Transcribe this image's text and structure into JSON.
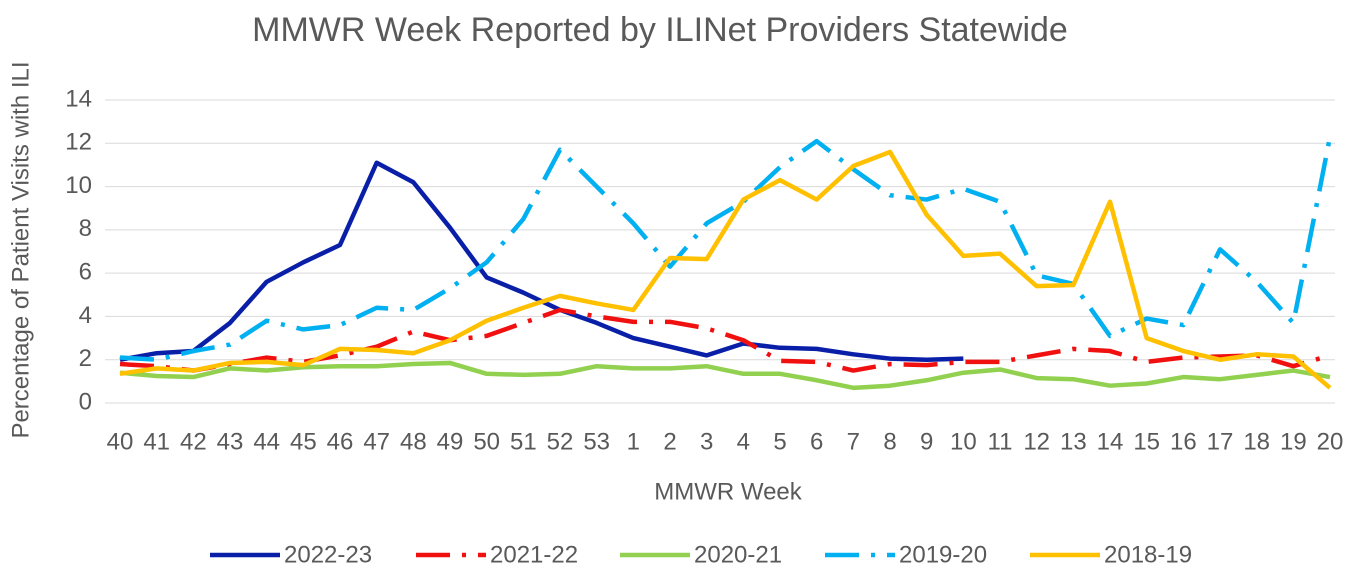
{
  "chart_data": {
    "type": "line",
    "title": "MMWR Week Reported by ILINet Providers Statewide",
    "x_label": "MMWR Week",
    "y_label": "Percentage of Patient Visits with ILI",
    "categories": [
      "40",
      "41",
      "42",
      "43",
      "44",
      "45",
      "46",
      "47",
      "48",
      "49",
      "50",
      "51",
      "52",
      "53",
      "1",
      "2",
      "3",
      "4",
      "5",
      "6",
      "7",
      "8",
      "9",
      "10",
      "11",
      "12",
      "13",
      "14",
      "15",
      "16",
      "17",
      "18",
      "19",
      "20"
    ],
    "ylim": [
      0,
      14
    ],
    "yticks": [
      0,
      2,
      4,
      6,
      8,
      10,
      12,
      14
    ],
    "grid": true,
    "legend": "bottom",
    "series": [
      {
        "name": "2022-23",
        "color": "#0a1fa8",
        "line_style": "solid",
        "values": [
          2.0,
          2.3,
          2.4,
          3.7,
          5.6,
          6.5,
          7.3,
          11.1,
          10.2,
          8.1,
          5.8,
          5.1,
          4.3,
          3.7,
          3.0,
          2.6,
          2.2,
          2.75,
          2.55,
          2.5,
          2.25,
          2.05,
          2.0,
          2.05,
          null,
          null,
          null,
          null,
          null,
          null,
          null,
          null,
          null,
          null
        ]
      },
      {
        "name": "2021-22",
        "color": "#f01010",
        "line_style": "dash-dot",
        "values": [
          1.8,
          1.7,
          1.5,
          1.8,
          2.1,
          1.9,
          2.2,
          2.6,
          3.3,
          2.9,
          3.1,
          3.7,
          4.3,
          4.0,
          3.75,
          3.75,
          3.45,
          2.9,
          1.95,
          1.9,
          1.5,
          1.8,
          1.75,
          1.9,
          1.9,
          2.2,
          2.5,
          2.4,
          1.9,
          2.1,
          2.15,
          2.2,
          1.7,
          2.2
        ]
      },
      {
        "name": "2020-21",
        "color": "#92d050",
        "line_style": "solid",
        "values": [
          1.4,
          1.25,
          1.2,
          1.6,
          1.5,
          1.65,
          1.7,
          1.7,
          1.8,
          1.85,
          1.35,
          1.3,
          1.35,
          1.7,
          1.6,
          1.6,
          1.7,
          1.35,
          1.35,
          1.05,
          0.7,
          0.8,
          1.05,
          1.4,
          1.55,
          1.15,
          1.1,
          0.8,
          0.9,
          1.2,
          1.1,
          1.3,
          1.5,
          1.2
        ]
      },
      {
        "name": "2019-20",
        "color": "#00b0f0",
        "line_style": "dash-dot",
        "values": [
          2.1,
          2.0,
          2.4,
          2.7,
          3.8,
          3.4,
          3.6,
          4.4,
          4.3,
          5.3,
          6.5,
          8.5,
          11.7,
          10.0,
          8.3,
          6.3,
          8.3,
          9.3,
          10.9,
          12.1,
          10.8,
          9.6,
          9.4,
          9.9,
          9.3,
          5.9,
          5.5,
          3.1,
          3.9,
          3.6,
          7.1,
          5.6,
          3.7,
          12.3
        ]
      },
      {
        "name": "2018-19",
        "color": "#ffc000",
        "line_style": "solid",
        "values": [
          1.35,
          1.6,
          1.5,
          1.85,
          1.9,
          1.75,
          2.5,
          2.45,
          2.3,
          2.9,
          3.8,
          4.4,
          4.95,
          4.6,
          4.3,
          6.7,
          6.65,
          9.4,
          10.3,
          9.4,
          10.95,
          11.6,
          8.7,
          6.8,
          6.9,
          5.4,
          5.45,
          9.3,
          3.0,
          2.4,
          2.0,
          2.25,
          2.15,
          0.7
        ]
      }
    ]
  }
}
